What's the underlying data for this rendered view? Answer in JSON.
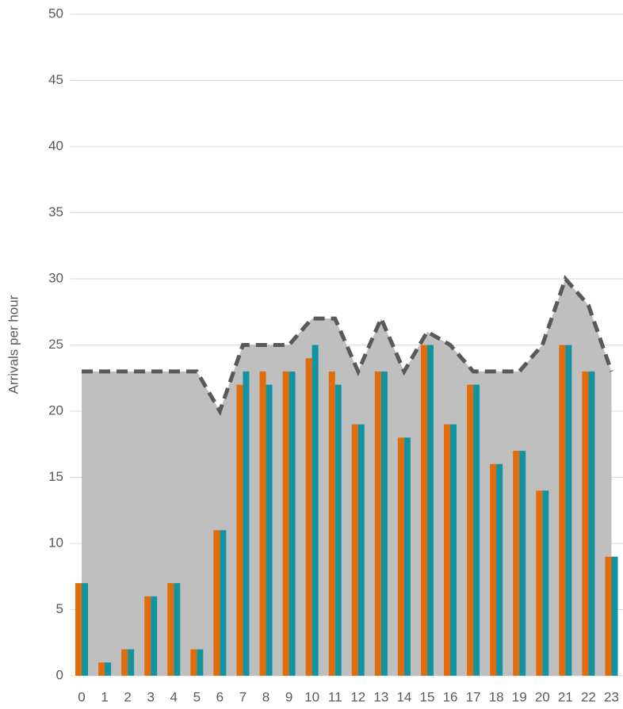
{
  "chart_data": {
    "type": "bar",
    "ylabel": "Arrivals per hour",
    "categories": [
      "0",
      "1",
      "2",
      "3",
      "4",
      "5",
      "6",
      "7",
      "8",
      "9",
      "10",
      "11",
      "12",
      "13",
      "14",
      "15",
      "16",
      "17",
      "18",
      "19",
      "20",
      "21",
      "22",
      "23"
    ],
    "series": [
      {
        "type": "area",
        "color": "#bfbfbf",
        "line_color": "#595959",
        "values": [
          23,
          23,
          23,
          23,
          23,
          23,
          20,
          25,
          25,
          25,
          27,
          27,
          23,
          27,
          23,
          26,
          25,
          23,
          23,
          23,
          25,
          30,
          28,
          23
        ]
      },
      {
        "color": "#e36c0a",
        "values": [
          7,
          1,
          2,
          6,
          7,
          2,
          11,
          22,
          23,
          23,
          24,
          23,
          19,
          23,
          18,
          25,
          19,
          22,
          16,
          17,
          14,
          25,
          23,
          9
        ]
      },
      {
        "color": "#12939f",
        "values": [
          7,
          1,
          2,
          6,
          7,
          2,
          11,
          23,
          22,
          23,
          25,
          22,
          19,
          23,
          18,
          25,
          19,
          22,
          16,
          17,
          14,
          25,
          23,
          9
        ]
      }
    ],
    "ylim": [
      0,
      50
    ],
    "yticks": [
      0,
      5,
      10,
      15,
      20,
      25,
      30,
      35,
      40,
      45,
      50
    ],
    "grid": true
  }
}
